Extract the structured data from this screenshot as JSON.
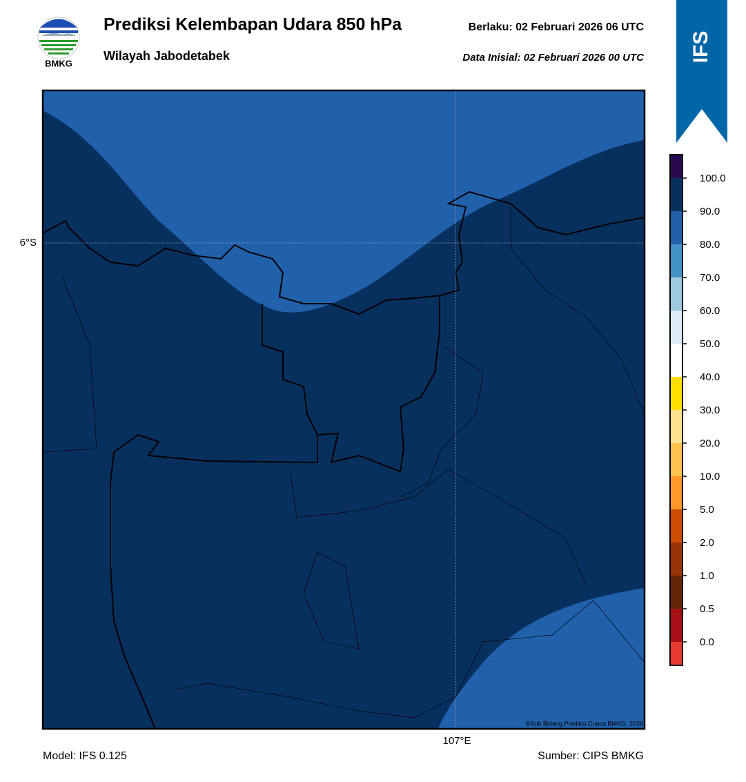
{
  "header": {
    "logo_text": "BMKG",
    "title": "Prediksi Kelembapan Udara 850 hPa",
    "valid": "Berlaku:  02 Februari 2026 06 UTC",
    "region": "Wilayah Jabodetabek",
    "init": "Data Inisial:  02 Februari 2026 00 UTC",
    "badge": "IFS"
  },
  "map": {
    "lat_label": "6°S",
    "lon_label": "107°E",
    "credit": "©Sub Bidang Prediksi Cuaca BMKG, 2026"
  },
  "colorbar": {
    "labels": [
      "0.0",
      "0.5",
      "1.0",
      "2.0",
      "5.0",
      "10.0",
      "20.0",
      "30.0",
      "40.0",
      "50.0",
      "60.0",
      "70.0",
      "80.0",
      "90.0",
      "100.0"
    ]
  },
  "footer": {
    "model": "Model: IFS 0.125",
    "source": "Sumber: CIPS BMKG"
  }
}
